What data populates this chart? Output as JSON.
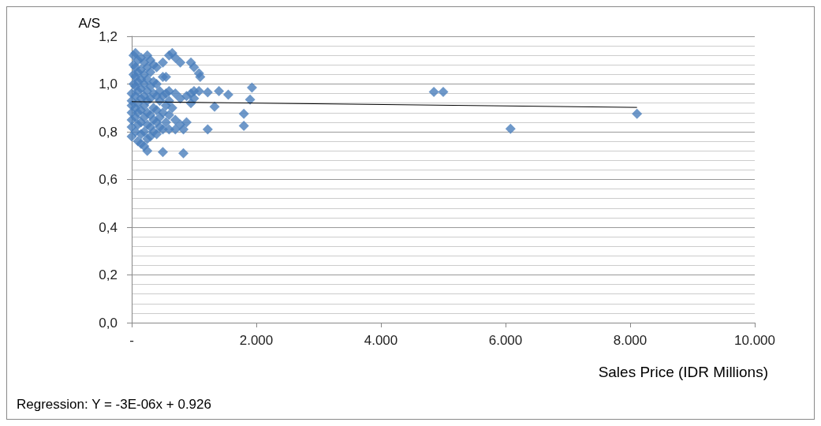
{
  "chart_data": {
    "type": "scatter",
    "ylabel": "A/S",
    "xlabel": "Sales Price (IDR Millions)",
    "annotations": [
      "Regression: Y = -3E-06x + 0.926"
    ],
    "xlim": [
      0,
      10000
    ],
    "xticks": [
      {
        "value": 0,
        "label": "-"
      },
      {
        "value": 2000,
        "label": "2.000"
      },
      {
        "value": 4000,
        "label": "4.000"
      },
      {
        "value": 6000,
        "label": "6.000"
      },
      {
        "value": 8000,
        "label": "8.000"
      },
      {
        "value": 10000,
        "label": "10.000"
      }
    ],
    "ylim": [
      0,
      1.2
    ],
    "yticks": [
      {
        "value": 0,
        "label": "0,0"
      },
      {
        "value": 0.2,
        "label": "0,2"
      },
      {
        "value": 0.4,
        "label": "0,4"
      },
      {
        "value": 0.6,
        "label": "0,6"
      },
      {
        "value": 0.8,
        "label": "0,8"
      },
      {
        "value": 1,
        "label": "1,0"
      },
      {
        "value": 1.2,
        "label": "1,2"
      }
    ],
    "grid": "y",
    "series": [
      {
        "marker": "diamond",
        "color": "#4a7ebb",
        "x": [
          0,
          0,
          0,
          0,
          0,
          0,
          0,
          30,
          30,
          30,
          30,
          60,
          60,
          60,
          60,
          60,
          60,
          60,
          60,
          100,
          100,
          100,
          100,
          100,
          100,
          100,
          100,
          150,
          150,
          150,
          150,
          150,
          150,
          150,
          150,
          150,
          200,
          200,
          200,
          200,
          200,
          200,
          200,
          200,
          250,
          250,
          250,
          250,
          250,
          250,
          250,
          250,
          250,
          300,
          300,
          300,
          300,
          300,
          300,
          300,
          350,
          350,
          350,
          350,
          350,
          350,
          400,
          400,
          400,
          400,
          400,
          400,
          450,
          450,
          450,
          450,
          500,
          500,
          500,
          500,
          500,
          500,
          550,
          550,
          550,
          550,
          600,
          600,
          600,
          600,
          600,
          650,
          650,
          700,
          700,
          700,
          700,
          780,
          780,
          780,
          830,
          830,
          880,
          880,
          950,
          950,
          950,
          1000,
          1000,
          1000,
          1080,
          1080,
          1100,
          1220,
          1220,
          1330,
          1400,
          1550,
          1800,
          1800,
          1900,
          1930,
          4850,
          5000,
          6080,
          8110
        ],
        "values": [
          0.78,
          0.82,
          0.85,
          0.88,
          0.91,
          0.93,
          0.96,
          1.0,
          1.04,
          1.08,
          1.12,
          0.8,
          0.86,
          0.9,
          0.95,
          0.99,
          1.03,
          1.07,
          1.13,
          0.76,
          0.83,
          0.88,
          0.92,
          0.97,
          1.01,
          1.05,
          1.1,
          0.75,
          0.79,
          0.84,
          0.89,
          0.94,
          0.98,
          1.02,
          1.06,
          1.11,
          0.74,
          0.8,
          0.86,
          0.91,
          0.95,
          1.0,
          1.04,
          1.09,
          0.72,
          0.77,
          0.83,
          0.88,
          0.93,
          0.97,
          1.02,
          1.07,
          1.12,
          0.78,
          0.82,
          0.87,
          0.94,
          0.99,
          1.05,
          1.1,
          0.8,
          0.85,
          0.9,
          0.96,
          1.01,
          1.08,
          0.79,
          0.84,
          0.89,
          0.95,
          1.0,
          1.07,
          0.82,
          0.86,
          0.93,
          0.97,
          0.715,
          0.81,
          0.88,
          0.95,
          1.03,
          1.09,
          0.84,
          0.91,
          0.96,
          1.03,
          0.81,
          0.87,
          0.93,
          0.97,
          1.12,
          1.13,
          0.9,
          0.81,
          0.85,
          0.96,
          1.11,
          0.83,
          0.94,
          1.09,
          0.71,
          0.81,
          0.84,
          0.95,
          0.92,
          0.96,
          1.09,
          0.94,
          0.97,
          1.07,
          0.97,
          1.045,
          1.03,
          0.81,
          0.965,
          0.905,
          0.97,
          0.955,
          0.875,
          0.825,
          0.935,
          0.985,
          0.967,
          0.967,
          0.812,
          0.875
        ]
      },
      {
        "type": "line",
        "marker": "none",
        "color": "#000000",
        "x": [
          0,
          8110
        ],
        "values": [
          0.926,
          0.902
        ]
      }
    ]
  }
}
